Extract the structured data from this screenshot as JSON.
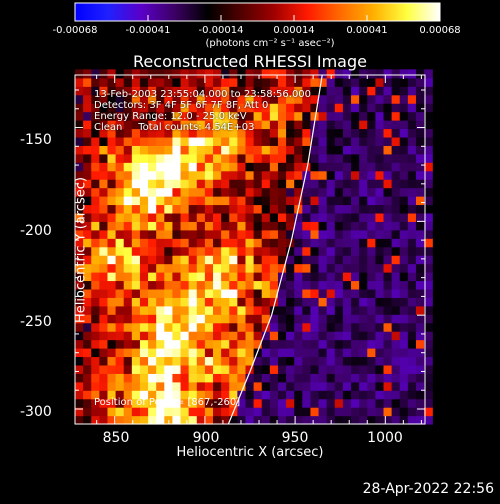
{
  "chart_data": {
    "type": "heatmap",
    "title": "Reconstructed RHESSI Image",
    "xlabel": "Heliocentric X (arcsec)",
    "ylabel": "Heliocentric Y (arcsec)",
    "xlim": [
      828,
      1022
    ],
    "ylim": [
      -308,
      -122
    ],
    "x_ticks": [
      "850",
      "900",
      "950",
      "1000"
    ],
    "y_ticks": [
      "-150",
      "-200",
      "-250",
      "-300"
    ],
    "colorbar": {
      "ticks": [
        "-0.00068",
        "-0.00041",
        "-0.00014",
        "0.00014",
        "0.00041",
        "0.00068"
      ],
      "units": "(photons cm⁻² s⁻¹ asec⁻²)",
      "range": [
        -0.00068,
        0.00068
      ],
      "colormap": [
        "#0000ff",
        "#2020ff",
        "#5a00c8",
        "#3c0064",
        "#000000",
        "#500000",
        "#a00000",
        "#ff1a00",
        "#ff6a00",
        "#ffb000",
        "#ffff40",
        "#ffffff"
      ]
    },
    "annotations": [
      "13-Feb-2003 23:55:04.000 to 23:58:56.000",
      "Detectors: 3F 4F 5F 6F 7F 8F, Att 0",
      "Energy Range: 12.0 - 25.0 keV",
      "Clean     Total counts: 4.54E+03"
    ],
    "peak_label": "Position of Peak = [867,-260]",
    "limb_curve": [
      [
        913,
        -308
      ],
      [
        925,
        -280
      ],
      [
        937,
        -250
      ],
      [
        948,
        -210
      ],
      [
        957,
        -170
      ],
      [
        965,
        -122
      ]
    ],
    "emission_sources": [
      {
        "x": 870,
        "y": -178,
        "value": 0.00068
      },
      {
        "x": 900,
        "y": -160,
        "value": 0.0005
      },
      {
        "x": 910,
        "y": -230,
        "value": 0.0005
      },
      {
        "x": 880,
        "y": -260,
        "value": 0.00058
      },
      {
        "x": 875,
        "y": -300,
        "value": 0.00062
      },
      {
        "x": 850,
        "y": -220,
        "value": 0.0004
      },
      {
        "x": 920,
        "y": -280,
        "value": 0.0003
      },
      {
        "x": 940,
        "y": -140,
        "value": 0.0002
      }
    ],
    "background_value": -0.0003
  },
  "footer": {
    "timestamp": "28-Apr-2022 22:56"
  }
}
